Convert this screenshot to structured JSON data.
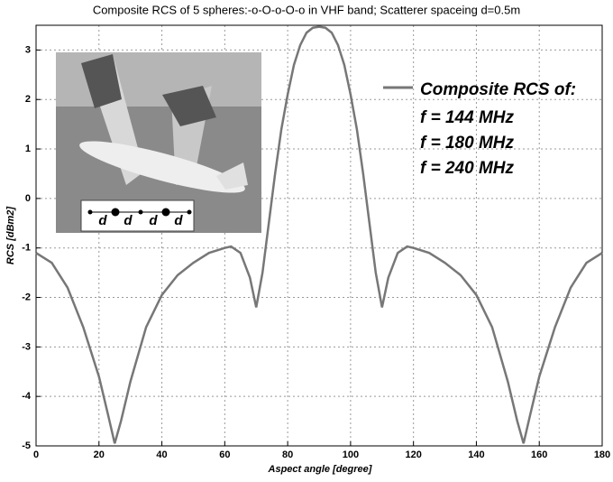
{
  "chart_data": {
    "type": "line",
    "title": "Composite RCS of 5 spheres:-o-O-o-O-o in VHF band; Scatterer spaceing d=0.5m",
    "x_label": "Aspect angle [degree]",
    "y_label": "RCS [dBm2]",
    "x": [
      0,
      5,
      10,
      15,
      20,
      23,
      25,
      27,
      30,
      35,
      40,
      45,
      50,
      55,
      60,
      62,
      65,
      68,
      70,
      72,
      74,
      76,
      78,
      80,
      82,
      84,
      86,
      88,
      90,
      92,
      94,
      96,
      98,
      100,
      102,
      104,
      106,
      108,
      110,
      112,
      115,
      118,
      120,
      125,
      130,
      135,
      140,
      145,
      150,
      153,
      155,
      157,
      160,
      165,
      170,
      175,
      180
    ],
    "series": [
      {
        "name": "Composite RCS of:",
        "color": "#777777",
        "values": [
          -1.1,
          -1.3,
          -1.8,
          -2.6,
          -3.6,
          -4.4,
          -4.95,
          -4.5,
          -3.7,
          -2.6,
          -1.95,
          -1.55,
          -1.3,
          -1.1,
          -1.0,
          -0.97,
          -1.1,
          -1.6,
          -2.2,
          -1.5,
          -0.5,
          0.5,
          1.4,
          2.1,
          2.7,
          3.1,
          3.35,
          3.45,
          3.47,
          3.45,
          3.35,
          3.1,
          2.7,
          2.1,
          1.4,
          0.5,
          -0.5,
          -1.5,
          -2.2,
          -1.6,
          -1.1,
          -0.97,
          -1.0,
          -1.1,
          -1.3,
          -1.55,
          -1.95,
          -2.6,
          -3.7,
          -4.5,
          -4.95,
          -4.4,
          -3.6,
          -2.6,
          -1.8,
          -1.3,
          -1.1
        ]
      }
    ],
    "legend_notes": [
      "f = 144 MHz",
      "f = 180 MHz",
      "f = 240 MHz"
    ],
    "inset_labels": [
      "d",
      "d",
      "d",
      "d"
    ],
    "xlim": [
      0,
      180
    ],
    "ylim": [
      -5,
      3.5
    ],
    "xticks": [
      0,
      20,
      40,
      60,
      80,
      100,
      120,
      140,
      160,
      180
    ],
    "yticks": [
      -5,
      -4,
      -3,
      -2,
      -1,
      0,
      1,
      2,
      3
    ],
    "grid": true
  }
}
